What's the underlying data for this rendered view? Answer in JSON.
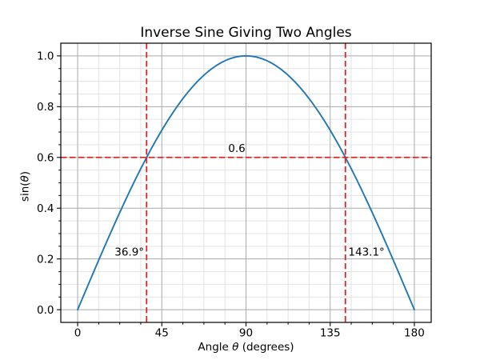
{
  "figure": {
    "background": "#ffffff"
  },
  "chart_data": {
    "type": "line",
    "title": "Inverse Sine Giving Two Angles",
    "xlabel": "Angle θ (degrees)",
    "ylabel": "sin(θ)",
    "xlim": [
      -9,
      189
    ],
    "ylim": [
      -0.05,
      1.05
    ],
    "x_ticks": [
      0,
      45,
      90,
      135,
      180
    ],
    "y_ticks": [
      0.0,
      0.2,
      0.4,
      0.6,
      0.8,
      1.0
    ],
    "x_minor_step": 11.25,
    "y_minor_step": 0.05,
    "grid": "both major and minor, grey",
    "legend": "none",
    "series": [
      {
        "name": "y = sin(θ), θ from 0° to 180°",
        "color": "#1f77b4",
        "x_deg": [
          0,
          15,
          30,
          45,
          60,
          75,
          90,
          105,
          120,
          135,
          150,
          165,
          180
        ],
        "y": [
          0.0,
          0.2588,
          0.5,
          0.7071,
          0.866,
          0.9659,
          1.0,
          0.9659,
          0.866,
          0.7071,
          0.5,
          0.2588,
          0.0
        ]
      }
    ],
    "reference_lines": [
      {
        "orientation": "horizontal",
        "value": 0.6,
        "color": "#d62728",
        "style": "dashed"
      },
      {
        "orientation": "vertical",
        "value": 36.87,
        "color": "#d62728",
        "style": "dashed"
      },
      {
        "orientation": "vertical",
        "value": 143.13,
        "color": "#d62728",
        "style": "dashed"
      }
    ],
    "annotations": [
      {
        "text": "0.6",
        "x": 80.5,
        "y": 0.622,
        "anchor": "start"
      },
      {
        "text": "36.9°",
        "x": 35.5,
        "y": 0.213,
        "anchor": "end"
      },
      {
        "text": "143.1°",
        "x": 144.7,
        "y": 0.213,
        "anchor": "start"
      }
    ],
    "colors": {
      "curve": "#1f77b4",
      "reference": "#d62728",
      "grid_major": "#aaaaaa",
      "grid_minor": "#e3e3e3",
      "spine": "#000000",
      "text": "#000000"
    }
  }
}
